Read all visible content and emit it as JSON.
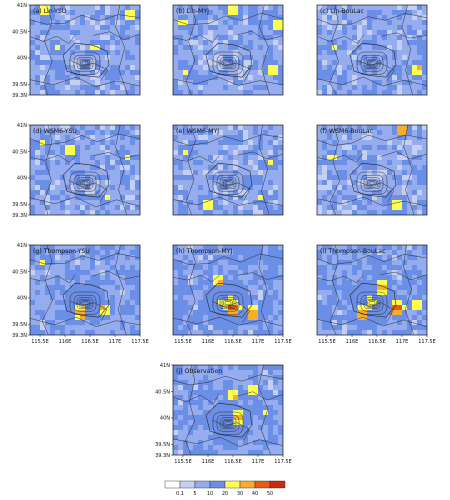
{
  "chart_data": {
    "type": "heatmap",
    "layout": "4 rows of panel maps; rows 1-3 have 3 panels, row 4 has 1 centered panel",
    "panels": [
      {
        "label": "(a) Lin-YSU",
        "row": 0,
        "col": 0,
        "rain_intensity": "low",
        "hotspots": [
          {
            "lon": 115.6,
            "lat": 40.9,
            "value": 30
          },
          {
            "lon": 117.3,
            "lat": 40.8,
            "value": 30
          },
          {
            "lon": 115.8,
            "lat": 40.2,
            "value": 20
          },
          {
            "lon": 116.6,
            "lat": 40.2,
            "value": 20
          },
          {
            "lon": 117.0,
            "lat": 39.7,
            "value": 20
          },
          {
            "lon": 115.9,
            "lat": 39.7,
            "value": 20
          }
        ]
      },
      {
        "label": "(b) Lin-MYJ",
        "row": 0,
        "col": 1,
        "rain_intensity": "low",
        "hotspots": [
          {
            "lon": 115.5,
            "lat": 40.7,
            "value": 20
          },
          {
            "lon": 116.5,
            "lat": 40.9,
            "value": 30
          },
          {
            "lon": 117.4,
            "lat": 40.6,
            "value": 30
          },
          {
            "lon": 115.6,
            "lat": 39.7,
            "value": 20
          },
          {
            "lon": 117.3,
            "lat": 39.8,
            "value": 30
          }
        ]
      },
      {
        "label": "(c) Lin-BouLac",
        "row": 0,
        "col": 2,
        "rain_intensity": "low",
        "hotspots": [
          {
            "lon": 116.4,
            "lat": 40.8,
            "value": 20
          },
          {
            "lon": 115.6,
            "lat": 40.2,
            "value": 20
          },
          {
            "lon": 117.4,
            "lat": 40.2,
            "value": 20
          },
          {
            "lon": 117.3,
            "lat": 39.8,
            "value": 30
          },
          {
            "lon": 115.5,
            "lat": 39.7,
            "value": 20
          }
        ]
      },
      {
        "label": "(d) WSM6-YSU",
        "row": 1,
        "col": 0,
        "rain_intensity": "low",
        "hotspots": [
          {
            "lon": 116.1,
            "lat": 40.5,
            "value": 30
          },
          {
            "lon": 117.2,
            "lat": 40.4,
            "value": 20
          },
          {
            "lon": 116.8,
            "lat": 39.6,
            "value": 20
          },
          {
            "lon": 115.6,
            "lat": 40.7,
            "value": 20
          }
        ]
      },
      {
        "label": "(e) WSM6-MYJ",
        "row": 1,
        "col": 1,
        "rain_intensity": "low",
        "hotspots": [
          {
            "lon": 115.6,
            "lat": 40.5,
            "value": 20
          },
          {
            "lon": 117.3,
            "lat": 40.3,
            "value": 20
          },
          {
            "lon": 116.0,
            "lat": 39.5,
            "value": 30
          },
          {
            "lon": 117.1,
            "lat": 39.6,
            "value": 20
          }
        ]
      },
      {
        "label": "(f) WSM6-BouLac",
        "row": 1,
        "col": 2,
        "rain_intensity": "low",
        "hotspots": [
          {
            "lon": 115.6,
            "lat": 40.4,
            "value": 20
          },
          {
            "lon": 117.0,
            "lat": 40.9,
            "value": 40
          },
          {
            "lon": 116.9,
            "lat": 39.5,
            "value": 30
          },
          {
            "lon": 117.4,
            "lat": 40.0,
            "value": 20
          }
        ]
      },
      {
        "label": "(g) Thompson-YSU",
        "row": 2,
        "col": 0,
        "rain_intensity": "medium",
        "hotspots": [
          {
            "lon": 115.6,
            "lat": 40.7,
            "value": 20
          },
          {
            "lon": 116.3,
            "lat": 39.7,
            "value": 40
          },
          {
            "lon": 116.8,
            "lat": 39.8,
            "value": 30
          },
          {
            "lon": 117.3,
            "lat": 40.4,
            "value": 20
          }
        ]
      },
      {
        "label": "(h) Thompson-MYJ",
        "row": 2,
        "col": 1,
        "rain_intensity": "high",
        "hotspots": [
          {
            "lon": 116.5,
            "lat": 39.8,
            "value": 50
          },
          {
            "lon": 116.9,
            "lat": 39.7,
            "value": 40
          },
          {
            "lon": 116.2,
            "lat": 40.3,
            "value": 30
          },
          {
            "lon": 117.3,
            "lat": 40.7,
            "value": 20
          }
        ]
      },
      {
        "label": "(i) Thompson-BouLac",
        "row": 2,
        "col": 2,
        "rain_intensity": "high",
        "hotspots": [
          {
            "lon": 116.6,
            "lat": 40.2,
            "value": 40
          },
          {
            "lon": 116.9,
            "lat": 39.8,
            "value": 50
          },
          {
            "lon": 116.2,
            "lat": 39.7,
            "value": 40
          },
          {
            "lon": 117.3,
            "lat": 39.9,
            "value": 30
          }
        ]
      },
      {
        "label": "(j) Observation",
        "row": 3,
        "col": 1,
        "rain_intensity": "medium",
        "hotspots": [
          {
            "lon": 116.5,
            "lat": 40.4,
            "value": 30
          },
          {
            "lon": 116.9,
            "lat": 40.5,
            "value": 30
          },
          {
            "lon": 116.6,
            "lat": 40.0,
            "value": 40
          },
          {
            "lon": 117.1,
            "lat": 40.1,
            "value": 20
          }
        ]
      }
    ],
    "x_ticks": [
      "115.5E",
      "116E",
      "116.5E",
      "117E",
      "117.5E"
    ],
    "y_ticks": [
      "41N",
      "40.5N",
      "40N",
      "39.5N",
      "39.3N"
    ],
    "xlim": [
      115.3,
      117.5
    ],
    "ylim": [
      39.3,
      41.0
    ],
    "colorbar": {
      "levels": [
        "0.1",
        "5",
        "10",
        "20",
        "30",
        "40",
        "50"
      ],
      "colors": [
        "#ffffff",
        "#c4cff2",
        "#95acee",
        "#6b8fe6",
        "#ffff4d",
        "#f5ad2b",
        "#e85a18",
        "#cc2a0d"
      ]
    },
    "contour_center": {
      "lon": 116.4,
      "lat": 39.9
    }
  }
}
